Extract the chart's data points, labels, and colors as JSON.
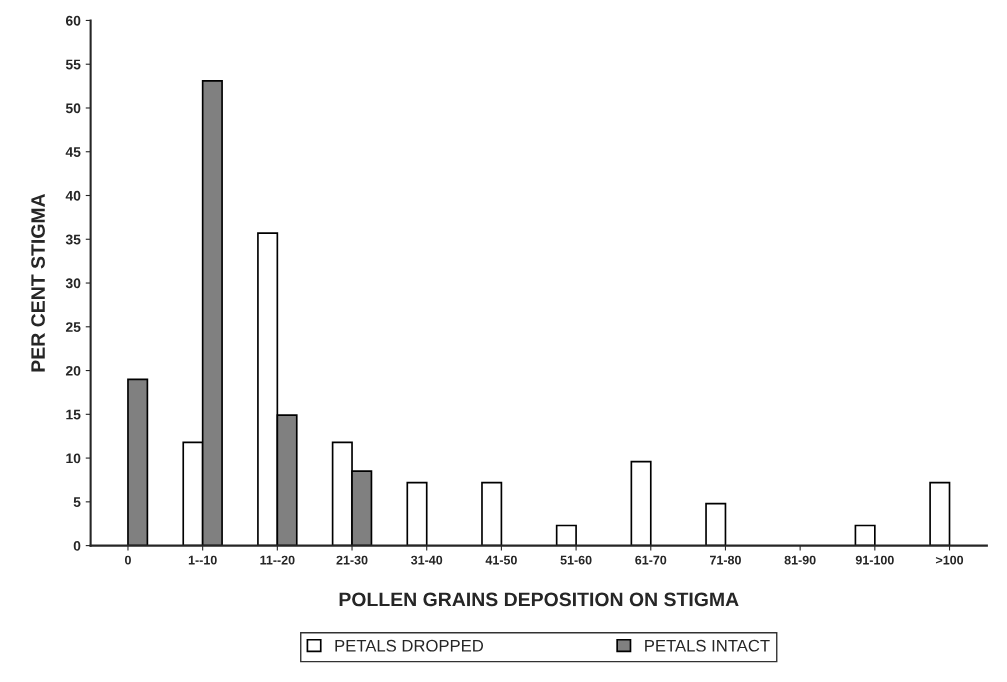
{
  "chart_data": {
    "type": "bar",
    "xlabel": "POLLEN GRAINS DEPOSITION ON STIGMA",
    "ylabel": "PER CENT STIGMA",
    "categories": [
      "0",
      "1--10",
      "11--20",
      "21-30",
      "31-40",
      "41-50",
      "51-60",
      "61-70",
      "71-80",
      "81-90",
      "91-100",
      ">100"
    ],
    "series": [
      {
        "name": "PETALS DROPPED",
        "color": "#ffffff",
        "values": [
          0,
          11.8,
          35.7,
          11.8,
          7.2,
          7.2,
          2.3,
          9.6,
          4.8,
          0,
          2.3,
          7.2
        ]
      },
      {
        "name": "PETALS INTACT",
        "color": "#808080",
        "values": [
          19.0,
          53.1,
          14.9,
          8.5,
          0,
          0,
          0,
          0,
          0,
          0,
          0,
          0
        ]
      }
    ],
    "ylim": [
      0,
      60
    ],
    "yticks": [
      0,
      5,
      10,
      15,
      20,
      25,
      30,
      35,
      40,
      45,
      50,
      55,
      60
    ],
    "grid": false,
    "legend": "bottom"
  }
}
